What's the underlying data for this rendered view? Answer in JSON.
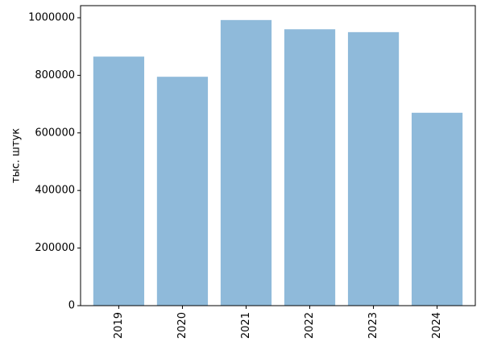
{
  "chart_data": {
    "type": "bar",
    "y_label": "тыс. штук",
    "categories": [
      "2019",
      "2020",
      "2021",
      "2022",
      "2023",
      "2024"
    ],
    "values": [
      865000,
      795000,
      992000,
      960000,
      950000,
      670000
    ],
    "color": "#8fbada",
    "ylim": [
      0,
      1042000
    ],
    "yticks": [
      0,
      200000,
      400000,
      600000,
      800000,
      1000000
    ],
    "grid": false
  }
}
